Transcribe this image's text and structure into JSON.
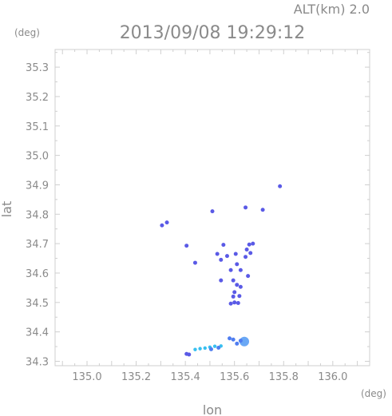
{
  "chart_data": {
    "type": "scatter",
    "title": "2013/09/08 19:29:12",
    "subtitle": "ALT(km) 2.0",
    "xlabel": "lon",
    "ylabel": "lat",
    "x_unit": "(deg)",
    "y_unit": "(deg)",
    "xlim": [
      134.87,
      136.15
    ],
    "ylim": [
      34.285,
      35.36
    ],
    "xticks": [
      {
        "value": 135.0,
        "label": "135.0"
      },
      {
        "value": 135.2,
        "label": "135.2"
      },
      {
        "value": 135.4,
        "label": "135.4"
      },
      {
        "value": 135.6,
        "label": "135.6"
      },
      {
        "value": 135.8,
        "label": "135.8"
      },
      {
        "value": 136.0,
        "label": "136.0"
      }
    ],
    "yticks": [
      {
        "value": 34.3,
        "label": "34.3"
      },
      {
        "value": 34.4,
        "label": "34.4"
      },
      {
        "value": 34.5,
        "label": "34.5"
      },
      {
        "value": 34.6,
        "label": "34.6"
      },
      {
        "value": 34.7,
        "label": "34.7"
      },
      {
        "value": 34.8,
        "label": "34.8"
      },
      {
        "value": 34.9,
        "label": "34.9"
      },
      {
        "value": 35.0,
        "label": "35.0"
      },
      {
        "value": 35.1,
        "label": "35.1"
      },
      {
        "value": 35.2,
        "label": "35.2"
      },
      {
        "value": 35.3,
        "label": "35.3"
      }
    ],
    "grid": false,
    "colors": {
      "weak": "#5a5ae6",
      "medium": "#4f7df0",
      "strong": "#6aa8f5",
      "light": "#38c0f0"
    },
    "points": [
      {
        "x": 135.785,
        "y": 34.895,
        "c": "weak"
      },
      {
        "x": 135.645,
        "y": 34.823,
        "c": "weak"
      },
      {
        "x": 135.715,
        "y": 34.815,
        "c": "weak"
      },
      {
        "x": 135.51,
        "y": 34.81,
        "c": "weak"
      },
      {
        "x": 135.305,
        "y": 34.762,
        "c": "weak"
      },
      {
        "x": 135.325,
        "y": 34.772,
        "c": "weak"
      },
      {
        "x": 135.405,
        "y": 34.693,
        "c": "weak"
      },
      {
        "x": 135.555,
        "y": 34.696,
        "c": "weak"
      },
      {
        "x": 135.66,
        "y": 34.697,
        "c": "weak"
      },
      {
        "x": 135.675,
        "y": 34.7,
        "c": "weak"
      },
      {
        "x": 135.65,
        "y": 34.68,
        "c": "weak"
      },
      {
        "x": 135.53,
        "y": 34.665,
        "c": "weak"
      },
      {
        "x": 135.57,
        "y": 34.658,
        "c": "weak"
      },
      {
        "x": 135.605,
        "y": 34.665,
        "c": "weak"
      },
      {
        "x": 135.645,
        "y": 34.655,
        "c": "weak"
      },
      {
        "x": 135.665,
        "y": 34.668,
        "c": "weak"
      },
      {
        "x": 135.545,
        "y": 34.645,
        "c": "weak"
      },
      {
        "x": 135.44,
        "y": 34.635,
        "c": "weak"
      },
      {
        "x": 135.61,
        "y": 34.63,
        "c": "weak"
      },
      {
        "x": 135.625,
        "y": 34.61,
        "c": "weak"
      },
      {
        "x": 135.585,
        "y": 34.61,
        "c": "weak"
      },
      {
        "x": 135.655,
        "y": 34.59,
        "c": "weak"
      },
      {
        "x": 135.545,
        "y": 34.575,
        "c": "weak"
      },
      {
        "x": 135.595,
        "y": 34.575,
        "c": "weak"
      },
      {
        "x": 135.61,
        "y": 34.56,
        "c": "weak"
      },
      {
        "x": 135.625,
        "y": 34.553,
        "c": "weak"
      },
      {
        "x": 135.6,
        "y": 34.535,
        "c": "weak"
      },
      {
        "x": 135.62,
        "y": 34.522,
        "c": "weak"
      },
      {
        "x": 135.595,
        "y": 34.52,
        "c": "weak"
      },
      {
        "x": 135.6,
        "y": 34.5,
        "c": "weak"
      },
      {
        "x": 135.615,
        "y": 34.498,
        "c": "weak"
      },
      {
        "x": 135.585,
        "y": 34.496,
        "c": "weak"
      },
      {
        "x": 135.58,
        "y": 34.378,
        "c": "medium"
      },
      {
        "x": 135.595,
        "y": 34.374,
        "c": "medium"
      },
      {
        "x": 135.64,
        "y": 34.367,
        "c": "strong"
      },
      {
        "x": 135.625,
        "y": 34.37,
        "c": "medium"
      },
      {
        "x": 135.61,
        "y": 34.36,
        "c": "medium"
      },
      {
        "x": 135.545,
        "y": 34.352,
        "c": "light"
      },
      {
        "x": 135.52,
        "y": 34.351,
        "c": "light"
      },
      {
        "x": 135.5,
        "y": 34.348,
        "c": "light"
      },
      {
        "x": 135.48,
        "y": 34.345,
        "c": "light"
      },
      {
        "x": 135.46,
        "y": 34.343,
        "c": "light"
      },
      {
        "x": 135.44,
        "y": 34.34,
        "c": "light"
      },
      {
        "x": 135.535,
        "y": 34.346,
        "c": "medium"
      },
      {
        "x": 135.505,
        "y": 34.341,
        "c": "medium"
      },
      {
        "x": 135.415,
        "y": 34.323,
        "c": "weak"
      },
      {
        "x": 135.405,
        "y": 34.325,
        "c": "weak"
      }
    ]
  }
}
